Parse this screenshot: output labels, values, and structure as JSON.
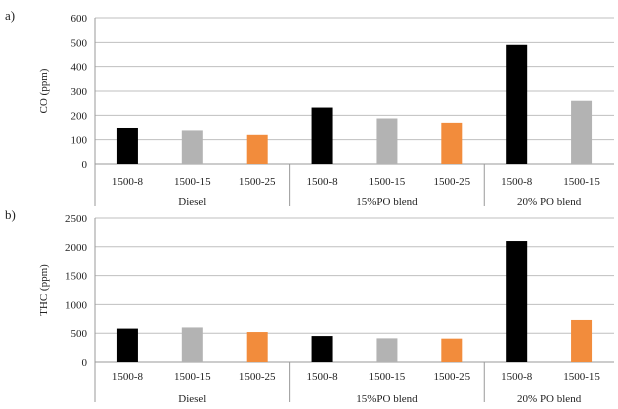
{
  "chart_data": [
    {
      "panel_label": "a)",
      "type": "bar",
      "ylabel": "CO (ppm)",
      "ylim": [
        0,
        600
      ],
      "yticks": [
        0,
        100,
        200,
        300,
        400,
        500,
        600
      ],
      "grid": true,
      "legend": "none",
      "categories": [
        "1500-8",
        "1500-15",
        "1500-25",
        "1500-8",
        "1500-15",
        "1500-25",
        "1500-8",
        "1500-15"
      ],
      "groups": [
        {
          "name": "Diesel",
          "span": 3
        },
        {
          "name": "15%PO blend",
          "span": 3
        },
        {
          "name": "20% PO blend",
          "span": 2
        }
      ],
      "values": [
        148,
        138,
        120,
        232,
        187,
        169,
        490,
        260
      ],
      "bar_colors": [
        "#000000",
        "#b3b3b3",
        "#f28c3c",
        "#000000",
        "#b3b3b3",
        "#f28c3c",
        "#000000",
        "#b3b3b3"
      ]
    },
    {
      "panel_label": "b)",
      "type": "bar",
      "ylabel": "THC (ppm)",
      "ylim": [
        0,
        2500
      ],
      "yticks": [
        0,
        500,
        1000,
        1500,
        2000,
        2500
      ],
      "grid": true,
      "legend": "none",
      "categories": [
        "1500-8",
        "1500-15",
        "1500-25",
        "1500-8",
        "1500-15",
        "1500-25",
        "1500-8",
        "1500-15"
      ],
      "groups": [
        {
          "name": "Diesel",
          "span": 3
        },
        {
          "name": "15%PO blend",
          "span": 3
        },
        {
          "name": "20% PO blend",
          "span": 2
        }
      ],
      "values": [
        580,
        600,
        520,
        450,
        410,
        405,
        2100,
        730
      ],
      "bar_colors": [
        "#000000",
        "#b3b3b3",
        "#f28c3c",
        "#000000",
        "#b3b3b3",
        "#f28c3c",
        "#000000",
        "#f28c3c"
      ]
    }
  ]
}
